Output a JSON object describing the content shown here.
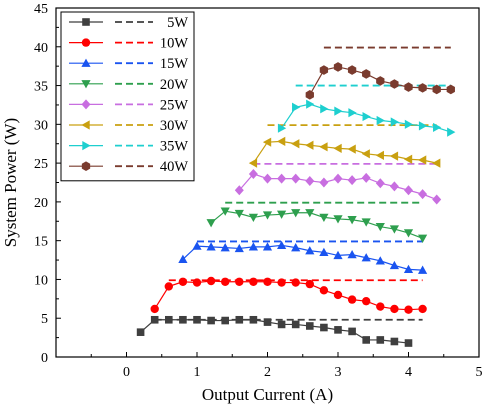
{
  "chart_data": {
    "type": "line",
    "xlabel": "Output Current (A)",
    "ylabel": "System Power (W)",
    "xlim": [
      -1,
      5
    ],
    "ylim": [
      0,
      45
    ],
    "xticks": [
      "0",
      "1",
      "2",
      "3",
      "4",
      "5"
    ],
    "yticks": [
      "0",
      "5",
      "10",
      "15",
      "20",
      "25",
      "30",
      "35",
      "40",
      "45"
    ],
    "legend_position": "top-left",
    "series": [
      {
        "name": "5W",
        "color": "#3f3f3f",
        "marker": "square",
        "x": [
          0.2,
          0.4,
          0.6,
          0.8,
          1.0,
          1.2,
          1.4,
          1.6,
          1.8,
          2.0,
          2.2,
          2.4,
          2.6,
          2.8,
          3.0,
          3.2,
          3.4,
          3.6,
          3.8,
          4.0
        ],
        "y": [
          3.2,
          4.8,
          4.8,
          4.8,
          4.8,
          4.7,
          4.7,
          4.8,
          4.8,
          4.5,
          4.2,
          4.2,
          4.0,
          3.8,
          3.5,
          3.3,
          2.2,
          2.2,
          2.0,
          1.8
        ],
        "dash_x": [
          0.4,
          4.2
        ],
        "dash_y": [
          4.8,
          4.8
        ]
      },
      {
        "name": "10W",
        "color": "#ff0000",
        "marker": "circle",
        "x": [
          0.4,
          0.6,
          0.8,
          1.0,
          1.2,
          1.4,
          1.6,
          1.8,
          2.0,
          2.2,
          2.4,
          2.6,
          2.8,
          3.0,
          3.2,
          3.4,
          3.6,
          3.8,
          4.0,
          4.2
        ],
        "y": [
          6.2,
          9.1,
          9.7,
          9.6,
          9.8,
          9.7,
          9.7,
          9.7,
          9.7,
          9.6,
          9.6,
          9.4,
          8.6,
          8.0,
          7.4,
          7.2,
          6.5,
          6.2,
          6.1,
          6.2
        ],
        "dash_x": [
          0.6,
          4.2
        ],
        "dash_y": [
          9.9,
          9.9
        ]
      },
      {
        "name": "15W",
        "color": "#1a54f0",
        "marker": "triangle-up",
        "x": [
          0.8,
          1.0,
          1.2,
          1.4,
          1.6,
          1.8,
          2.0,
          2.2,
          2.4,
          2.6,
          2.8,
          3.0,
          3.2,
          3.4,
          3.6,
          3.8,
          4.0,
          4.2
        ],
        "y": [
          12.6,
          14.3,
          14.2,
          14.1,
          14.0,
          14.2,
          14.2,
          14.4,
          14.1,
          13.7,
          13.5,
          13.1,
          13.2,
          12.8,
          12.4,
          11.8,
          11.3,
          11.2
        ],
        "dash_x": [
          1.0,
          4.2
        ],
        "dash_y": [
          14.9,
          14.9
        ]
      },
      {
        "name": "20W",
        "color": "#2e9f4e",
        "marker": "triangle-down",
        "x": [
          1.2,
          1.4,
          1.6,
          1.8,
          2.0,
          2.2,
          2.4,
          2.6,
          2.8,
          3.0,
          3.2,
          3.4,
          3.6,
          3.8,
          4.0,
          4.2
        ],
        "y": [
          17.3,
          18.8,
          18.5,
          18.0,
          18.3,
          18.4,
          18.6,
          18.6,
          18.0,
          17.8,
          17.7,
          17.4,
          16.8,
          16.5,
          16.0,
          15.3
        ],
        "dash_x": [
          1.4,
          4.2
        ],
        "dash_y": [
          19.9,
          19.9
        ]
      },
      {
        "name": "25W",
        "color": "#c86ee0",
        "marker": "diamond",
        "x": [
          1.6,
          1.8,
          2.0,
          2.2,
          2.4,
          2.6,
          2.8,
          3.0,
          3.2,
          3.4,
          3.6,
          3.8,
          4.0,
          4.2,
          4.4
        ],
        "y": [
          21.5,
          23.6,
          23.0,
          23.0,
          23.0,
          22.7,
          22.5,
          23.0,
          22.8,
          23.1,
          22.4,
          22.0,
          21.5,
          21.0,
          20.3
        ],
        "dash_x": [
          1.8,
          4.4
        ],
        "dash_y": [
          24.9,
          24.9
        ]
      },
      {
        "name": "30W",
        "color": "#c9a010",
        "marker": "triangle-left",
        "x": [
          1.8,
          2.0,
          2.2,
          2.4,
          2.6,
          2.8,
          3.0,
          3.2,
          3.4,
          3.6,
          3.8,
          4.0,
          4.2,
          4.4
        ],
        "y": [
          25.0,
          27.7,
          27.8,
          27.5,
          27.3,
          27.1,
          26.9,
          26.8,
          26.2,
          26.0,
          25.9,
          25.5,
          25.4,
          25.0
        ],
        "dash_x": [
          2.0,
          4.4
        ],
        "dash_y": [
          29.9,
          29.9
        ]
      },
      {
        "name": "35W",
        "color": "#1ecfcf",
        "marker": "triangle-right",
        "x": [
          2.2,
          2.4,
          2.6,
          2.8,
          3.0,
          3.2,
          3.4,
          3.6,
          3.8,
          4.0,
          4.2,
          4.4,
          4.6
        ],
        "y": [
          29.5,
          32.2,
          32.6,
          32.0,
          31.7,
          31.5,
          31.0,
          30.5,
          30.3,
          30.0,
          29.8,
          29.6,
          29.0
        ],
        "dash_x": [
          2.4,
          4.6
        ],
        "dash_y": [
          35.0,
          35.0
        ]
      },
      {
        "name": "40W",
        "color": "#7a3b2e",
        "marker": "hexagon",
        "x": [
          2.6,
          2.8,
          3.0,
          3.2,
          3.4,
          3.6,
          3.8,
          4.0,
          4.2,
          4.4,
          4.6
        ],
        "y": [
          33.8,
          37.0,
          37.4,
          37.0,
          36.5,
          35.6,
          35.2,
          34.8,
          34.7,
          34.5,
          34.5
        ],
        "dash_x": [
          2.8,
          4.6
        ],
        "dash_y": [
          39.9,
          39.9
        ]
      }
    ]
  }
}
